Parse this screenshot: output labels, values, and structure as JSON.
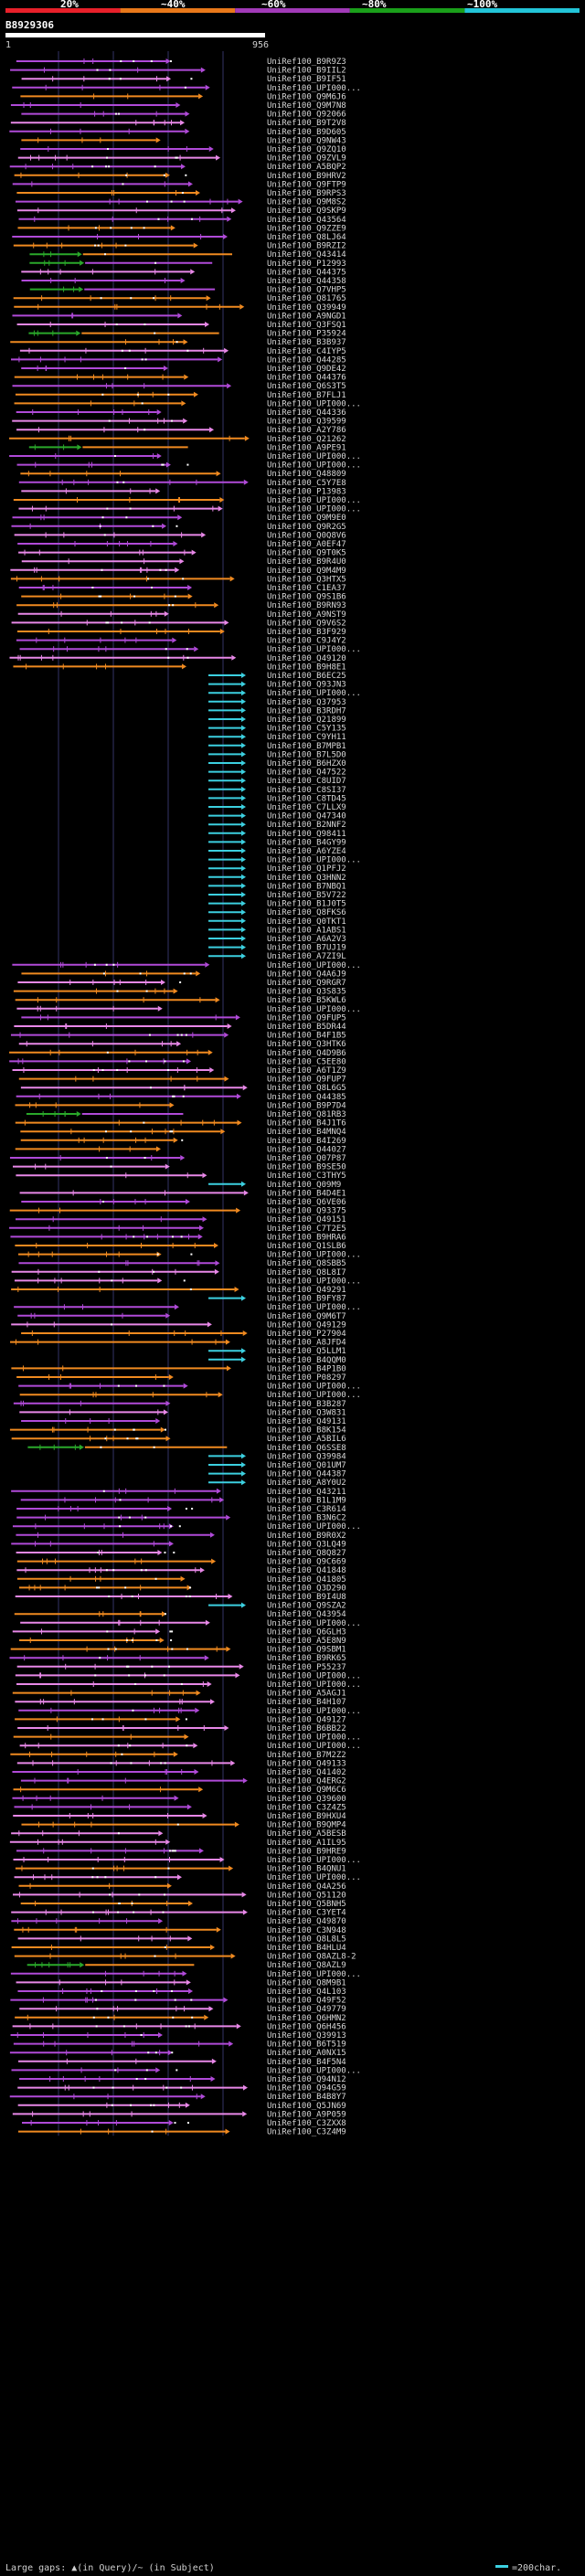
{
  "chart_data": {
    "type": "alignment-overview",
    "title": "B8929306",
    "query_start_label": "1",
    "query_end_label": "956",
    "query_length": 956,
    "identity_scale": {
      "ticks": [
        "20%",
        "~40%",
        "~60%",
        "~80%",
        "~100%"
      ],
      "colors": [
        "#e8202a",
        "#e8781a",
        "#a23ab8",
        "#1aa01a",
        "#22c4d8"
      ]
    },
    "color_legend": {
      "orange": "#f08a20",
      "purple": "#b04ad8",
      "pink": "#e888e8",
      "green": "#2aa82a",
      "cyan": "#3cd0e0"
    },
    "hits": [
      "UniRef100_B9R9Z3",
      "UniRef100_B9IIL2",
      "UniRef100_B9IF51",
      "UniRef100_UPI000...",
      "UniRef100_Q9M6J6",
      "UniRef100_Q9M7N8",
      "UniRef100_Q92066",
      "UniRef100_B9T2V8",
      "UniRef100_B9D605",
      "UniRef100_Q9NW43",
      "UniRef100_Q9ZQ10",
      "UniRef100_Q9ZVL9",
      "UniRef100_A5BQP2",
      "UniRef100_B9HRV2",
      "UniRef100_Q9FTP9",
      "UniRef100_B9RPS3",
      "UniRef100_Q9M8S2",
      "UniRef100_Q9SKP9",
      "UniRef100_Q43564",
      "UniRef100_Q9ZZE9",
      "UniRef100_Q8LJ64",
      "UniRef100_B9RZI2",
      "UniRef100_Q43414",
      "UniRef100_P12993",
      "UniRef100_Q44375",
      "UniRef100_Q44358",
      "UniRef100_Q7VHP5",
      "UniRef100_Q81765",
      "UniRef100_Q39949",
      "UniRef100_A9NGD1",
      "UniRef100_Q3FSQ1",
      "UniRef100_P35924",
      "UniRef100_B3B937",
      "UniRef100_C4IYP5",
      "UniRef100_Q44285",
      "UniRef100_Q9DE42",
      "UniRef100_Q44376",
      "UniRef100_Q6S3T5",
      "UniRef100_B7FLJ1",
      "UniRef100_UPI000...",
      "UniRef100_Q44336",
      "UniRef100_Q39599",
      "UniRef100_A2Y786",
      "UniRef100_Q21262",
      "UniRef100_A9PE91",
      "UniRef100_UPI000...",
      "UniRef100_UPI000...",
      "UniRef100_Q48809",
      "UniRef100_C5Y7E8",
      "UniRef100_P13983",
      "UniRef100_UPI000...",
      "UniRef100_UPI000...",
      "UniRef100_Q9M9E0",
      "UniRef100_Q9R2G5",
      "UniRef100_Q0Q8V6",
      "UniRef100_A0EF47",
      "UniRef100_Q9T0K5",
      "UniRef100_B9R4U0",
      "UniRef100_Q9M4M9",
      "UniRef100_Q3HTX5",
      "UniRef100_C1EA37",
      "UniRef100_Q9S1B6",
      "UniRef100_B9RN93",
      "UniRef100_A9NST9",
      "UniRef100_Q9V6S2",
      "UniRef100_B3F929",
      "UniRef100_C9J4Y2",
      "UniRef100_UPI000...",
      "UniRef100_Q49120",
      "UniRef100_B9H8E1",
      "UniRef100_B6EC25",
      "UniRef100_Q93JN3",
      "UniRef100_UPI000...",
      "UniRef100_Q37953",
      "UniRef100_B3RDH7",
      "UniRef100_Q21899",
      "UniRef100_C5Y135",
      "UniRef100_C9YH11",
      "UniRef100_B7MPB1",
      "UniRef100_B7L5D0",
      "UniRef100_B6HZX0",
      "UniRef100_Q47522",
      "UniRef100_C8UID7",
      "UniRef100_C8SI37",
      "UniRef100_C8TD45",
      "UniRef100_C7LLX9",
      "UniRef100_Q47340",
      "UniRef100_B2NNF2",
      "UniRef100_Q98411",
      "UniRef100_B4GY99",
      "UniRef100_A6YZE4",
      "UniRef100_UPI000...",
      "UniRef100_Q1PFJ2",
      "UniRef100_Q3HNN2",
      "UniRef100_B7NBQ1",
      "UniRef100_B5V722",
      "UniRef100_B1J0T5",
      "UniRef100_Q8FKS6",
      "UniRef100_Q0TKT1",
      "UniRef100_A1ABS1",
      "UniRef100_A6A2V3",
      "UniRef100_B7UJ19",
      "UniRef100_A7ZI9L",
      "UniRef100_UPI000...",
      "UniRef100_Q4A6J9",
      "UniRef100_Q9RGR7",
      "UniRef100_Q3S835",
      "UniRef100_B5KWL6",
      "UniRef100_UPI000...",
      "UniRef100_Q9FUP5",
      "UniRef100_B5DR44",
      "UniRef100_B4F1B5",
      "UniRef100_Q3HTK6",
      "UniRef100_Q4D9B6",
      "UniRef100_C5EE80",
      "UniRef100_A6T1Z9",
      "UniRef100_Q9FUP7",
      "UniRef100_Q8L6G5",
      "UniRef100_Q44385",
      "UniRef100_B9P7D4",
      "UniRef100_Q81RB3",
      "UniRef100_B4J1T6",
      "UniRef100_B4MNQ4",
      "UniRef100_B4I269",
      "UniRef100_Q44027",
      "UniRef100_Q07P87",
      "UniRef100_B9SE50",
      "UniRef100_C3THY5",
      "UniRef100_Q09M9",
      "UniRef100_B4D4E1",
      "UniRef100_Q6VE06",
      "UniRef100_Q93375",
      "UniRef100_Q49151",
      "UniRef100_C7T2E5",
      "UniRef100_B9HRA6",
      "UniRef100_Q1SLB6",
      "UniRef100_UPI000...",
      "UniRef100_Q8SBB5",
      "UniRef100_Q8L8I7",
      "UniRef100_UPI000...",
      "UniRef100_Q49291",
      "UniRef100_B9FY87",
      "UniRef100_UPI000...",
      "UniRef100_Q9M6T7",
      "UniRef100_Q49129",
      "UniRef100_P27904",
      "UniRef100_A8JFD4",
      "UniRef100_Q5LLM1",
      "UniRef100_B4QQM0",
      "UniRef100_B4P1B0",
      "UniRef100_P08297",
      "UniRef100_UPI000...",
      "UniRef100_UPI000...",
      "UniRef100_B3B287",
      "UniRef100_Q3W831",
      "UniRef100_Q49131",
      "UniRef100_B8K154",
      "UniRef100_A5BIL6",
      "UniRef100_Q6SSE8",
      "UniRef100_Q39984",
      "UniRef100_Q01UM7",
      "UniRef100_Q44387",
      "UniRef100_A8Y0U2",
      "UniRef100_Q43211",
      "UniRef100_B1L1M9",
      "UniRef100_C3R614",
      "UniRef100_B3N6C2",
      "UniRef100_UPI000...",
      "UniRef100_B9R0X2",
      "UniRef100_Q3LQ49",
      "UniRef100_Q8Q827",
      "UniRef100_Q9C669",
      "UniRef100_Q41848",
      "UniRef100_Q41805",
      "UniRef100_Q3D290",
      "UniRef100_B9I4U8",
      "UniRef100_Q9SZA2",
      "UniRef100_Q43954",
      "UniRef100_UPI000...",
      "UniRef100_Q6GLH3",
      "UniRef100_A5E8N9",
      "UniRef100_Q9SBM1",
      "UniRef100_B9RK65",
      "UniRef100_P55237",
      "UniRef100_UPI000...",
      "UniRef100_UPI000...",
      "UniRef100_A5AGJ1",
      "UniRef100_B4H107",
      "UniRef100_UPI000...",
      "UniRef100_Q49127",
      "UniRef100_B6BB22",
      "UniRef100_UPI000...",
      "UniRef100_UPI000...",
      "UniRef100_B7M2Z2",
      "UniRef100_Q49133",
      "UniRef100_Q41402",
      "UniRef100_Q4ERG2",
      "UniRef100_Q9M6C6",
      "UniRef100_Q39600",
      "UniRef100_C3Z4Z5",
      "UniRef100_B9HXU4",
      "UniRef100_B9QMP4",
      "UniRef100_A5BESB",
      "UniRef100_A1IL95",
      "UniRef100_B9HRE9",
      "UniRef100_UPI000...",
      "UniRef100_B4QNU1",
      "UniRef100_UPI000...",
      "UniRef100_Q4A256",
      "UniRef100_Q51120",
      "UniRef100_Q5BNH5",
      "UniRef100_C3YET4",
      "UniRef100_Q49870",
      "UniRef100_C3N948",
      "UniRef100_Q8L8L5",
      "UniRef100_B4HLU4",
      "UniRef100_Q8AZL8-2",
      "UniRef100_Q8AZL9",
      "UniRef100_UPI000...",
      "UniRef100_Q8M9B1",
      "UniRef100_Q4L103",
      "UniRef100_Q49F52",
      "UniRef100_Q49779",
      "UniRef100_Q6HMN2",
      "UniRef100_Q6H456",
      "UniRef100_Q39913",
      "UniRef100_B6T519",
      "UniRef100_A0NX15",
      "UniRef100_B4F5N4",
      "UniRef100_UPI000...",
      "UniRef100_Q94N12",
      "UniRef100_Q94G59",
      "UniRef100_B4B8Y7",
      "UniRef100_Q5JN69",
      "UniRef100_A9P059",
      "UniRef100_C3ZXX8",
      "UniRef100_C3Z4M9"
    ],
    "footer": {
      "large_gaps_text": "Large gaps: ▲(in Query)/~ (in Subject)",
      "scale_text": "=200char."
    }
  }
}
